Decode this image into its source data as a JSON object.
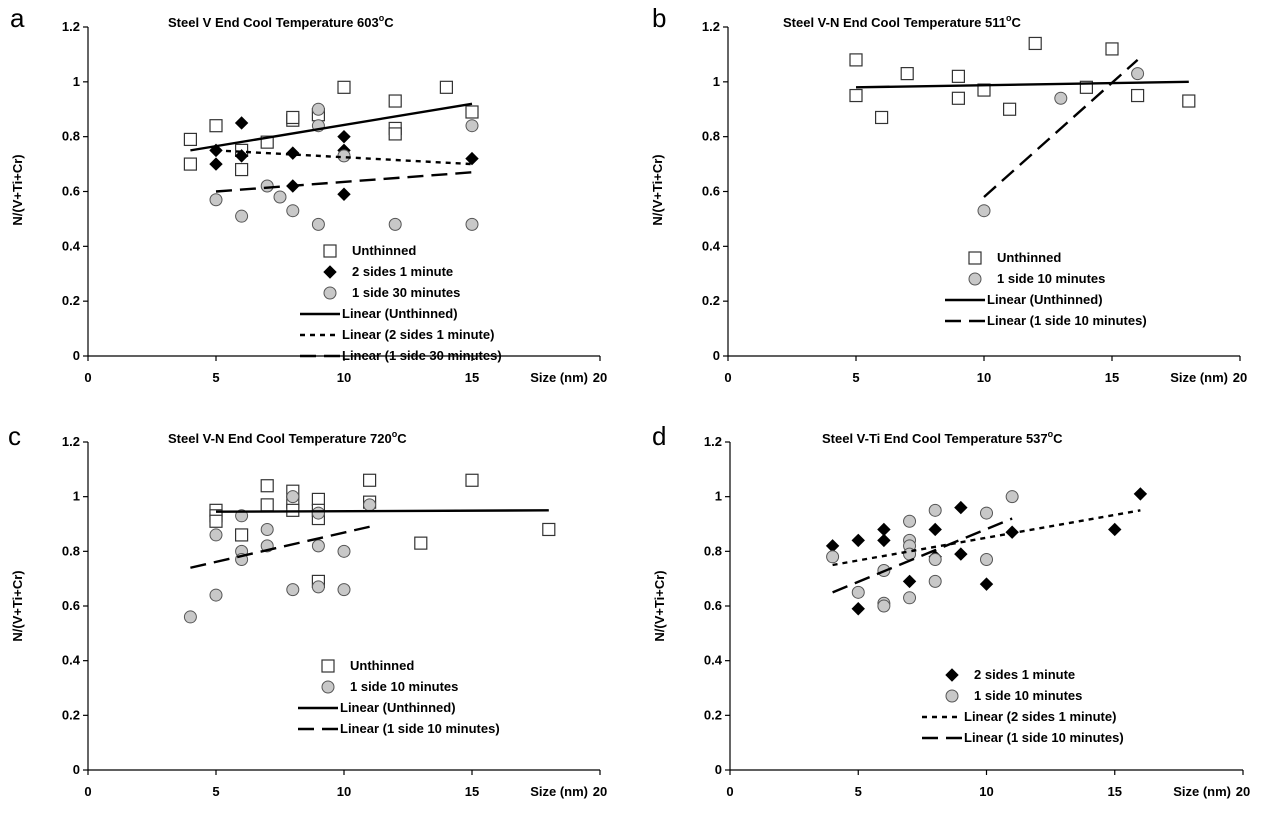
{
  "figure": {
    "sup_symbol": "o"
  },
  "chart_data": [
    {
      "panel": "a",
      "type": "scatter",
      "title": "Steel V   End Cool Temperature 603",
      "title_unit": "C",
      "ylabel": "N/(V+Ti+Cr)",
      "xlabel": "Size (nm)",
      "xlim": [
        0,
        20
      ],
      "ylim": [
        0,
        1.2
      ],
      "xticks": [
        "0",
        "5",
        "10",
        "15",
        "20"
      ],
      "yticks": [
        "0",
        "0.2",
        "0.4",
        "0.6",
        "0.8",
        "1",
        "1.2"
      ],
      "series": [
        {
          "name": "Unthinned",
          "marker": "square",
          "points": [
            [
              4,
              0.79
            ],
            [
              4,
              0.7
            ],
            [
              5,
              0.84
            ],
            [
              6,
              0.75
            ],
            [
              6,
              0.68
            ],
            [
              7,
              0.78
            ],
            [
              8,
              0.86
            ],
            [
              8,
              0.87
            ],
            [
              9,
              0.88
            ],
            [
              10,
              0.98
            ],
            [
              12,
              0.93
            ],
            [
              12,
              0.83
            ],
            [
              12,
              0.81
            ],
            [
              14,
              0.98
            ],
            [
              15,
              0.89
            ]
          ]
        },
        {
          "name": "2 sides 1 minute",
          "marker": "diamond",
          "points": [
            [
              5,
              0.75
            ],
            [
              5,
              0.7
            ],
            [
              6,
              0.85
            ],
            [
              6,
              0.73
            ],
            [
              8,
              0.74
            ],
            [
              8,
              0.62
            ],
            [
              10,
              0.8
            ],
            [
              10,
              0.75
            ],
            [
              10,
              0.59
            ],
            [
              15,
              0.72
            ]
          ]
        },
        {
          "name": "1 side 30 minutes",
          "marker": "circle",
          "points": [
            [
              5,
              0.57
            ],
            [
              6,
              0.51
            ],
            [
              7,
              0.62
            ],
            [
              7.5,
              0.58
            ],
            [
              8,
              0.53
            ],
            [
              9,
              0.48
            ],
            [
              9,
              0.84
            ],
            [
              9,
              0.9
            ],
            [
              10,
              0.73
            ],
            [
              12,
              0.48
            ],
            [
              15,
              0.84
            ],
            [
              15,
              0.48
            ]
          ]
        }
      ],
      "trendlines": [
        {
          "name": "Linear (Unthinned)",
          "style": "solid",
          "x": [
            4,
            15
          ],
          "y": [
            0.75,
            0.92
          ]
        },
        {
          "name": "Linear (2 sides 1 minute)",
          "style": "dotted",
          "x": [
            5,
            15
          ],
          "y": [
            0.75,
            0.7
          ]
        },
        {
          "name": "Linear (1 side 30 minutes)",
          "style": "dashed",
          "x": [
            5,
            15
          ],
          "y": [
            0.6,
            0.67
          ]
        }
      ]
    },
    {
      "panel": "b",
      "type": "scatter",
      "title": "Steel V-N   End Cool Temperature 511",
      "title_unit": "C",
      "ylabel": "N/(V+Ti+Cr)",
      "xlabel": "Size (nm)",
      "xlim": [
        0,
        20
      ],
      "ylim": [
        0,
        1.2
      ],
      "xticks": [
        "0",
        "5",
        "10",
        "15",
        "20"
      ],
      "yticks": [
        "0",
        "0.2",
        "0.4",
        "0.6",
        "0.8",
        "1",
        "1.2"
      ],
      "series": [
        {
          "name": "Unthinned",
          "marker": "square",
          "points": [
            [
              5,
              1.08
            ],
            [
              5,
              0.95
            ],
            [
              6,
              0.87
            ],
            [
              7,
              1.03
            ],
            [
              9,
              1.02
            ],
            [
              9,
              0.94
            ],
            [
              10,
              0.97
            ],
            [
              11,
              0.9
            ],
            [
              12,
              1.14
            ],
            [
              14,
              0.98
            ],
            [
              15,
              1.12
            ],
            [
              16,
              0.95
            ],
            [
              18,
              0.93
            ]
          ]
        },
        {
          "name": "1 side 10 minutes",
          "marker": "circle",
          "points": [
            [
              10,
              0.53
            ],
            [
              13,
              0.94
            ],
            [
              16,
              1.03
            ]
          ]
        }
      ],
      "trendlines": [
        {
          "name": "Linear (Unthinned)",
          "style": "solid",
          "x": [
            5,
            18
          ],
          "y": [
            0.98,
            1.0
          ]
        },
        {
          "name": "Linear (1 side 10 minutes)",
          "style": "dashed",
          "x": [
            10,
            16
          ],
          "y": [
            0.58,
            1.08
          ]
        }
      ]
    },
    {
      "panel": "c",
      "type": "scatter",
      "title": "Steel V-N     End Cool Temperature 720",
      "title_unit": "C",
      "ylabel": "N/(V+Ti+Cr)",
      "xlabel": "Size (nm)",
      "xlim": [
        0,
        20
      ],
      "ylim": [
        0,
        1.2
      ],
      "xticks": [
        "0",
        "5",
        "10",
        "15",
        "20"
      ],
      "yticks": [
        "0",
        "0.2",
        "0.4",
        "0.6",
        "0.8",
        "1",
        "1.2"
      ],
      "series": [
        {
          "name": "Unthinned",
          "marker": "square",
          "points": [
            [
              5,
              0.95
            ],
            [
              5,
              0.93
            ],
            [
              5,
              0.91
            ],
            [
              6,
              0.86
            ],
            [
              7,
              1.04
            ],
            [
              7,
              0.97
            ],
            [
              8,
              1.02
            ],
            [
              8,
              0.98
            ],
            [
              8,
              0.95
            ],
            [
              9,
              0.99
            ],
            [
              9,
              0.95
            ],
            [
              9,
              0.92
            ],
            [
              9,
              0.69
            ],
            [
              11,
              1.06
            ],
            [
              11,
              0.98
            ],
            [
              13,
              0.83
            ],
            [
              15,
              1.06
            ],
            [
              18,
              0.88
            ]
          ]
        },
        {
          "name": "1 side 10 minutes",
          "marker": "circle",
          "points": [
            [
              4,
              0.56
            ],
            [
              5,
              0.86
            ],
            [
              5,
              0.64
            ],
            [
              6,
              0.93
            ],
            [
              6,
              0.8
            ],
            [
              6,
              0.77
            ],
            [
              7,
              0.88
            ],
            [
              7,
              0.82
            ],
            [
              8,
              1.0
            ],
            [
              8,
              0.66
            ],
            [
              9,
              0.94
            ],
            [
              9,
              0.82
            ],
            [
              9,
              0.67
            ],
            [
              10,
              0.8
            ],
            [
              10,
              0.66
            ],
            [
              11,
              0.97
            ]
          ]
        }
      ],
      "trendlines": [
        {
          "name": "Linear (Unthinned)",
          "style": "solid",
          "x": [
            5,
            18
          ],
          "y": [
            0.945,
            0.95
          ]
        },
        {
          "name": "Linear (1 side 10 minutes)",
          "style": "dashed",
          "x": [
            4,
            11
          ],
          "y": [
            0.74,
            0.89
          ]
        }
      ]
    },
    {
      "panel": "d",
      "type": "scatter",
      "title": "Steel V-Ti   End Cool Temperature 537",
      "title_unit": "C",
      "ylabel": "N/(V+Ti+Cr)",
      "xlabel": "Size (nm)",
      "xlim": [
        0,
        20
      ],
      "ylim": [
        0,
        1.2
      ],
      "xticks": [
        "0",
        "5",
        "10",
        "15",
        "20"
      ],
      "yticks": [
        "0",
        "0.2",
        "0.4",
        "0.6",
        "0.8",
        "1",
        "1.2"
      ],
      "series": [
        {
          "name": "2 sides 1 minute",
          "marker": "diamond",
          "points": [
            [
              4,
              0.82
            ],
            [
              5,
              0.84
            ],
            [
              5,
              0.59
            ],
            [
              6,
              0.88
            ],
            [
              6,
              0.84
            ],
            [
              7,
              0.69
            ],
            [
              8,
              0.88
            ],
            [
              8,
              0.78
            ],
            [
              9,
              0.96
            ],
            [
              9,
              0.79
            ],
            [
              10,
              0.68
            ],
            [
              11,
              0.87
            ],
            [
              15,
              0.88
            ],
            [
              16,
              1.01
            ]
          ]
        },
        {
          "name": "1 side 10 minutes",
          "marker": "circle",
          "points": [
            [
              4,
              0.78
            ],
            [
              5,
              0.65
            ],
            [
              6,
              0.73
            ],
            [
              6,
              0.61
            ],
            [
              6,
              0.6
            ],
            [
              7,
              0.91
            ],
            [
              7,
              0.84
            ],
            [
              7,
              0.82
            ],
            [
              7,
              0.79
            ],
            [
              7,
              0.63
            ],
            [
              8,
              0.95
            ],
            [
              8,
              0.77
            ],
            [
              8,
              0.69
            ],
            [
              10,
              0.94
            ],
            [
              10,
              0.77
            ],
            [
              11,
              1.0
            ]
          ]
        }
      ],
      "trendlines": [
        {
          "name": "Linear (2 sides 1 minute)",
          "style": "dotted",
          "x": [
            4,
            16
          ],
          "y": [
            0.75,
            0.95
          ]
        },
        {
          "name": "Linear (1 side 10 minutes)",
          "style": "dashed",
          "x": [
            4,
            11
          ],
          "y": [
            0.65,
            0.92
          ]
        }
      ]
    }
  ]
}
